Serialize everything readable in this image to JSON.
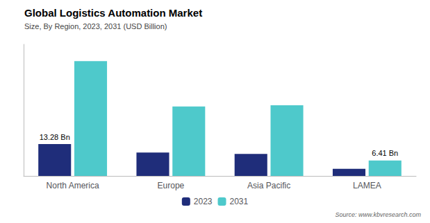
{
  "chart_data": {
    "type": "bar",
    "title": "Global Logistics Automation Market",
    "subtitle": "Size, By Region, 2023, 2031 (USD Billion)",
    "source": "Source: www.kbvresearch.com",
    "categories": [
      "North America",
      "Europe",
      "Asia Pacific",
      "LAMEA"
    ],
    "series": [
      {
        "name": "2023",
        "color": "#1f2d7a",
        "values": [
          13.28,
          9.8,
          9.2,
          3.0
        ]
      },
      {
        "name": "2031",
        "color": "#4ec9cb",
        "values": [
          48.0,
          29.0,
          29.5,
          6.41
        ]
      }
    ],
    "ylim": [
      0,
      55
    ],
    "annotations": [
      {
        "text": "13.28 Bn",
        "series": "2023",
        "category": "North America"
      },
      {
        "text": "6.41 Bn",
        "series": "2031",
        "category": "LAMEA"
      }
    ],
    "grid": false,
    "legend": "bottom",
    "tick_labels": "x"
  }
}
